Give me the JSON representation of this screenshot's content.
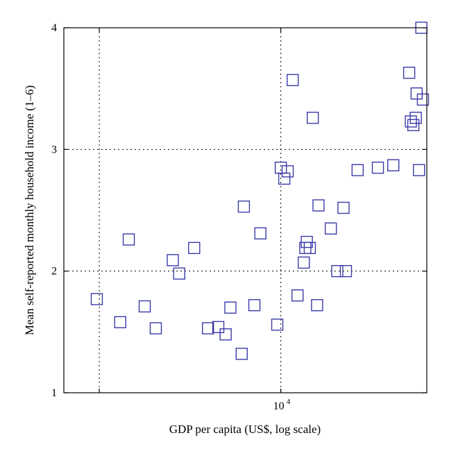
{
  "chart_data": {
    "type": "scatter",
    "x_scale": "log",
    "xlabel": "GDP per capita (US$, log scale)",
    "ylabel": "Mean self-reported monthly household income (1–6)",
    "xlim": [
      2900,
      23000
    ],
    "ylim": [
      1,
      4
    ],
    "x_ticks": [
      {
        "value": 10000,
        "base": "10",
        "exp": "4"
      }
    ],
    "x_gridlines": [
      3550,
      10000
    ],
    "y_ticks": [
      1,
      2,
      3,
      4
    ],
    "grid": true,
    "marker": "square",
    "marker_color": "#3a3aa8",
    "points": [
      [
        3500,
        1.77
      ],
      [
        4000,
        1.58
      ],
      [
        4200,
        2.26
      ],
      [
        4600,
        1.71
      ],
      [
        4900,
        1.53
      ],
      [
        5400,
        2.09
      ],
      [
        5600,
        1.98
      ],
      [
        6100,
        2.19
      ],
      [
        6600,
        1.53
      ],
      [
        7000,
        1.54
      ],
      [
        7300,
        1.48
      ],
      [
        7500,
        1.7
      ],
      [
        8000,
        1.32
      ],
      [
        8100,
        2.53
      ],
      [
        8600,
        1.72
      ],
      [
        8900,
        2.31
      ],
      [
        9800,
        1.56
      ],
      [
        10000,
        2.85
      ],
      [
        10200,
        2.76
      ],
      [
        10400,
        2.82
      ],
      [
        10700,
        3.57
      ],
      [
        11000,
        1.8
      ],
      [
        11400,
        2.07
      ],
      [
        11500,
        2.19
      ],
      [
        11600,
        2.24
      ],
      [
        11800,
        2.19
      ],
      [
        12000,
        3.26
      ],
      [
        12300,
        1.72
      ],
      [
        12400,
        2.54
      ],
      [
        13300,
        2.35
      ],
      [
        13800,
        2.0
      ],
      [
        14500,
        2.0
      ],
      [
        14300,
        2.52
      ],
      [
        15500,
        2.83
      ],
      [
        17400,
        2.85
      ],
      [
        19000,
        2.87
      ],
      [
        20800,
        3.63
      ],
      [
        21000,
        3.23
      ],
      [
        21300,
        3.2
      ],
      [
        21600,
        3.26
      ],
      [
        21700,
        3.46
      ],
      [
        22000,
        2.83
      ],
      [
        22300,
        4.0
      ],
      [
        22500,
        3.41
      ]
    ]
  }
}
